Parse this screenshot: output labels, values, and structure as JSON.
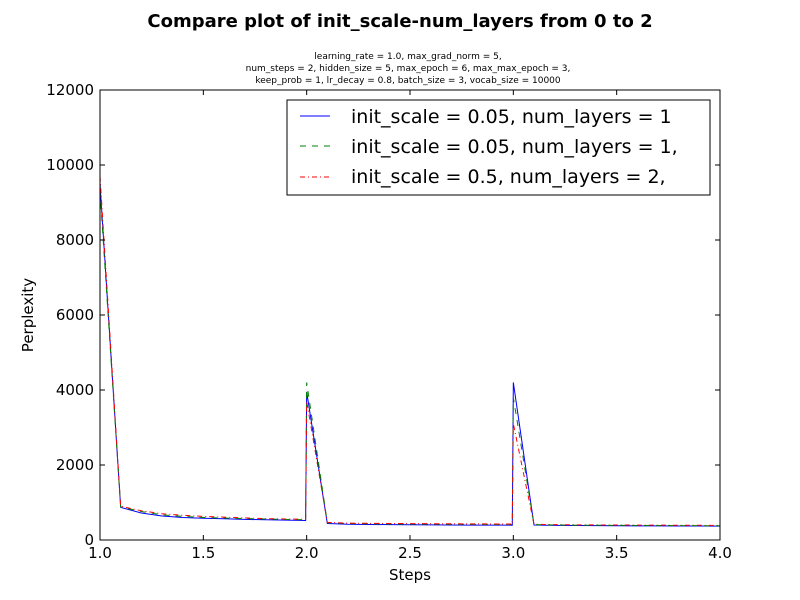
{
  "chart_data": {
    "type": "line",
    "title": "Compare plot of init_scale-num_layers from 0 to 2",
    "subtitle_lines": [
      "learning_rate = 1.0, max_grad_norm = 5,",
      "num_steps = 2, hidden_size = 5, max_epoch = 6, max_max_epoch = 3,",
      "keep_prob = 1, lr_decay = 0.8, batch_size = 3, vocab_size = 10000"
    ],
    "xlabel": "Steps",
    "ylabel": "Perplexity",
    "xlim": [
      1.0,
      4.0
    ],
    "ylim": [
      0,
      12000
    ],
    "x_ticks": [
      "1.0",
      "1.5",
      "2.0",
      "2.5",
      "3.0",
      "3.5",
      "4.0"
    ],
    "y_ticks": [
      "0",
      "2000",
      "4000",
      "6000",
      "8000",
      "10000",
      "12000"
    ],
    "x_tick_values": [
      1.0,
      1.5,
      2.0,
      2.5,
      3.0,
      3.5,
      4.0
    ],
    "y_tick_values": [
      0,
      2000,
      4000,
      6000,
      8000,
      10000,
      12000
    ],
    "legend_position": "top-right",
    "grid": false,
    "series": [
      {
        "name": "init_scale = 0.05, num_layers = 1",
        "color": "#0000ff",
        "style": "solid",
        "x": [
          1.0,
          1.1,
          1.2,
          1.3,
          1.4,
          1.5,
          1.6,
          1.7,
          1.8,
          1.9,
          1.995,
          2.0,
          2.1,
          2.2,
          2.3,
          2.4,
          2.5,
          2.6,
          2.7,
          2.8,
          2.9,
          2.995,
          3.0,
          3.1,
          3.2,
          3.3,
          3.4,
          3.5,
          3.6,
          3.7,
          3.8,
          3.9,
          4.0
        ],
        "y": [
          9500,
          870,
          720,
          640,
          600,
          580,
          565,
          550,
          540,
          530,
          520,
          3950,
          440,
          420,
          415,
          410,
          405,
          402,
          400,
          398,
          396,
          395,
          4200,
          400,
          390,
          385,
          382,
          380,
          378,
          376,
          374,
          372,
          370
        ]
      },
      {
        "name": "init_scale = 0.05, num_layers = 1,",
        "color": "#008000",
        "style": "dashed",
        "x": [
          1.0,
          1.1,
          1.2,
          1.3,
          1.4,
          1.5,
          1.6,
          1.7,
          1.8,
          1.9,
          1.995,
          2.0,
          2.1,
          2.2,
          2.3,
          2.4,
          2.5,
          2.6,
          2.7,
          2.8,
          2.9,
          2.995,
          3.0,
          3.1,
          3.2,
          3.3,
          3.4,
          3.5,
          3.6,
          3.7,
          3.8,
          3.9,
          4.0
        ],
        "y": [
          9300,
          880,
          760,
          670,
          630,
          600,
          585,
          570,
          560,
          548,
          540,
          4200,
          460,
          440,
          432,
          428,
          425,
          422,
          420,
          418,
          416,
          415,
          3800,
          410,
          400,
          395,
          393,
          390,
          388,
          386,
          384,
          382,
          380
        ]
      },
      {
        "name": "init_scale = 0.5, num_layers = 2,",
        "color": "#ff0000",
        "style": "dashdot",
        "x": [
          1.0,
          1.1,
          1.2,
          1.3,
          1.4,
          1.5,
          1.6,
          1.7,
          1.8,
          1.9,
          1.995,
          2.0,
          2.1,
          2.2,
          2.3,
          2.4,
          2.5,
          2.6,
          2.7,
          2.8,
          2.9,
          2.995,
          3.0,
          3.1,
          3.2,
          3.3,
          3.4,
          3.5,
          3.6,
          3.7,
          3.8,
          3.9,
          4.0
        ],
        "y": [
          9700,
          900,
          780,
          700,
          660,
          630,
          610,
          590,
          570,
          560,
          555,
          3700,
          470,
          450,
          445,
          440,
          438,
          435,
          433,
          430,
          428,
          425,
          3100,
          420,
          410,
          405,
          402,
          400,
          398,
          396,
          394,
          392,
          390
        ]
      }
    ]
  }
}
